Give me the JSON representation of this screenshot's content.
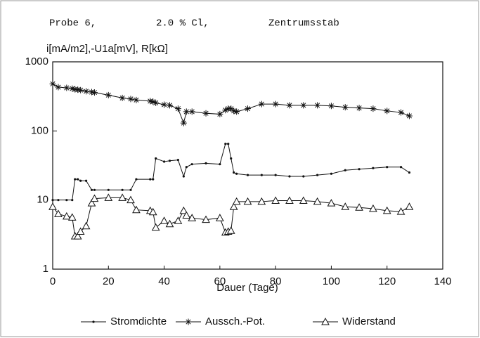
{
  "chart_data": {
    "type": "line",
    "title_parts": [
      "Probe 6,",
      "2.0 % Cl,",
      "Zentrumsstab"
    ],
    "y_label": "i[mA/m2],-U1a[mV], R[kΩ]",
    "x_label": "Dauer (Tage)",
    "log_y": true,
    "xlim": [
      0,
      140
    ],
    "xticks": [
      0,
      20,
      40,
      60,
      80,
      100,
      120,
      140
    ],
    "ylim": [
      1,
      1000
    ],
    "yticks": [
      1,
      10,
      100,
      1000
    ],
    "x": [
      0,
      2,
      5,
      7,
      8,
      9,
      10,
      12,
      14,
      15,
      20,
      25,
      28,
      30,
      35,
      36,
      37,
      40,
      42,
      45,
      47,
      48,
      50,
      55,
      60,
      62,
      63,
      64,
      65,
      66,
      70,
      75,
      80,
      85,
      90,
      95,
      100,
      105,
      110,
      115,
      120,
      125,
      128
    ],
    "series": [
      {
        "name": "Stromdichte",
        "color": "#111111",
        "marker": "dot",
        "values": [
          10,
          10,
          10,
          10,
          20,
          20,
          19,
          19,
          14,
          14,
          14,
          14,
          14,
          20,
          20,
          20,
          40,
          36,
          37,
          38,
          22,
          30,
          33,
          34,
          33,
          65,
          65,
          40,
          25,
          24,
          23,
          23,
          23,
          22,
          22,
          23,
          24,
          27,
          28,
          29,
          30,
          30,
          25
        ]
      },
      {
        "name": "Aussch.-Pot.",
        "color": "#111111",
        "marker": "star",
        "values": [
          480,
          430,
          420,
          410,
          400,
          395,
          390,
          375,
          365,
          360,
          330,
          300,
          290,
          280,
          270,
          265,
          255,
          240,
          235,
          210,
          130,
          190,
          190,
          180,
          175,
          200,
          210,
          210,
          195,
          190,
          210,
          245,
          245,
          235,
          235,
          235,
          230,
          220,
          215,
          210,
          195,
          185,
          165
        ]
      },
      {
        "name": "Widerstand",
        "color": "#111111",
        "marker": "triangle",
        "values": [
          8,
          6.3,
          5.8,
          5.6,
          3,
          3,
          3.5,
          4.2,
          9,
          10.5,
          10.8,
          10.8,
          10,
          7.2,
          7,
          6.7,
          4,
          5,
          4.5,
          5,
          7,
          6,
          5.5,
          5.2,
          5.5,
          3.4,
          3.5,
          3.6,
          8,
          9.5,
          9.5,
          9.5,
          9.8,
          9.8,
          9.8,
          9.5,
          9,
          8,
          7.8,
          7.5,
          7,
          6.8,
          8
        ]
      }
    ]
  }
}
